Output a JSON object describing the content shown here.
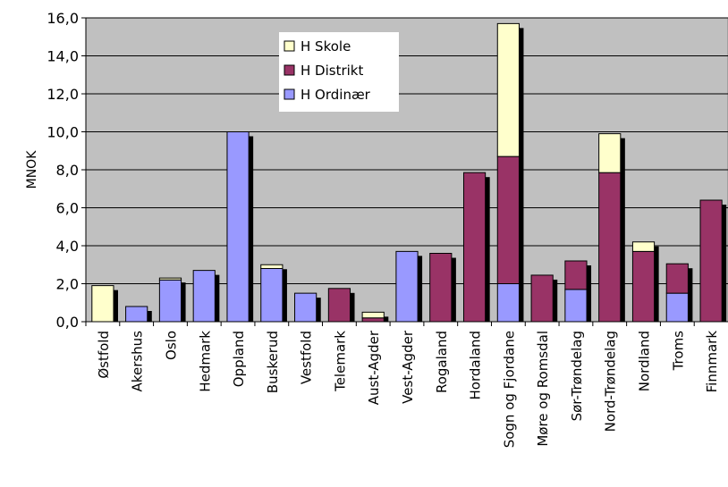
{
  "chart_data": {
    "type": "bar",
    "stacked": true,
    "ylabel": "MNOK",
    "ylim": [
      0,
      16
    ],
    "yticks": [
      "0,0",
      "2,0",
      "4,0",
      "6,0",
      "8,0",
      "10,0",
      "12,0",
      "14,0",
      "16,0"
    ],
    "grid": true,
    "legend_position": "top-center",
    "categories": [
      "Østfold",
      "Akershus",
      "Oslo",
      "Hedmark",
      "Oppland",
      "Buskerud",
      "Vestfold",
      "Telemark",
      "Aust-Agder",
      "Vest-Agder",
      "Rogaland",
      "Hordaland",
      "Sogn og Fjordane",
      "Møre og Romsdal",
      "Sør-Trøndelag",
      "Nord-Trøndelag",
      "Nordland",
      "Troms",
      "Finnmark"
    ],
    "series": [
      {
        "name": "H Ordinær",
        "color": "#9999ff",
        "values": [
          0,
          0.8,
          2.2,
          2.7,
          10.0,
          2.8,
          1.5,
          0,
          0,
          3.7,
          0,
          0,
          2.0,
          0,
          1.7,
          0,
          0,
          1.5,
          0
        ]
      },
      {
        "name": "H Distrikt",
        "color": "#993366",
        "values": [
          0,
          0,
          0,
          0,
          0,
          0,
          0,
          1.75,
          0.2,
          0,
          3.6,
          7.85,
          6.7,
          2.45,
          1.5,
          7.85,
          3.7,
          1.55,
          6.4
        ]
      },
      {
        "name": "H Skole",
        "color": "#ffffcc",
        "values": [
          1.9,
          0,
          0.1,
          0,
          0,
          0.2,
          0,
          0,
          0.3,
          0,
          0,
          0,
          7.0,
          0,
          0,
          2.05,
          0.5,
          0,
          0
        ]
      }
    ],
    "legend_order": [
      "H Skole",
      "H Distrikt",
      "H Ordinær"
    ],
    "plot_background": "#c0c0c0"
  }
}
